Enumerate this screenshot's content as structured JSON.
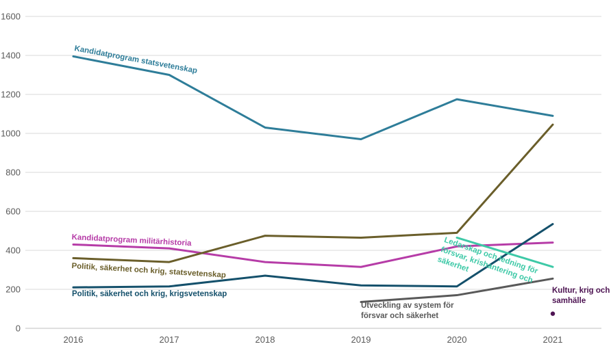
{
  "chart_data": {
    "type": "line",
    "x": [
      "2016",
      "2017",
      "2018",
      "2019",
      "2020",
      "2021"
    ],
    "series": [
      {
        "name": "Kandidatprogram statsvetenskap",
        "color": "#2E7D99",
        "values": [
          1395,
          1300,
          1030,
          970,
          1175,
          1090
        ]
      },
      {
        "name": "Kandidatprogram militärhistoria",
        "color": "#B63CA7",
        "values": [
          430,
          410,
          340,
          315,
          420,
          440
        ]
      },
      {
        "name": "Politik, säkerhet och krig, statsvetenskap",
        "color": "#6A5E2A",
        "values": [
          360,
          340,
          475,
          465,
          490,
          1045
        ]
      },
      {
        "name": "Politik, säkerhet och krig, krigsvetenskap",
        "color": "#14506B",
        "values": [
          210,
          215,
          270,
          220,
          215,
          535
        ]
      },
      {
        "name": "Ledarskap  och ledning för försvar, krishantering och säkerhet",
        "color": "#3EC9A7",
        "values": [
          null,
          null,
          null,
          null,
          465,
          315
        ]
      },
      {
        "name": "Utveckling av system för försvar och säkerhet",
        "color": "#595959",
        "values": [
          null,
          null,
          null,
          135,
          170,
          255
        ]
      },
      {
        "name": "Kultur, krig och samhälle",
        "color": "#4E1453",
        "values": [
          null,
          null,
          null,
          null,
          null,
          75
        ],
        "marker_only": true
      }
    ],
    "title": "",
    "xlabel": "",
    "ylabel": "",
    "ylim": [
      0,
      1600
    ],
    "ytick_step": 200,
    "grid": true,
    "legend_position": "inline-labels",
    "axis_text_color": "#595959",
    "gridline_color": "#D9D9D9",
    "axis_line_color": "#BFBFBF"
  }
}
